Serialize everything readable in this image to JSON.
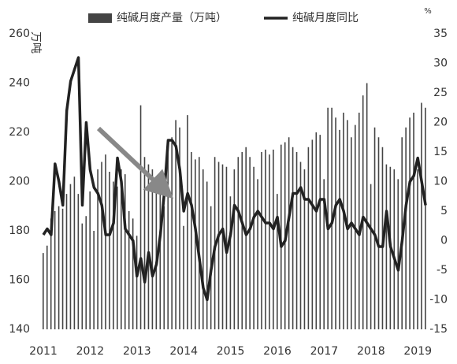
{
  "chart_data": {
    "type": "bar-line",
    "y_label": "万吨",
    "y2_label": "%",
    "categories": [
      "2011",
      null,
      null,
      null,
      null,
      null,
      null,
      null,
      null,
      null,
      null,
      null,
      "2012",
      null,
      null,
      null,
      null,
      null,
      null,
      null,
      null,
      null,
      null,
      null,
      "2013",
      null,
      null,
      null,
      null,
      null,
      null,
      null,
      null,
      null,
      null,
      null,
      "2014",
      null,
      null,
      null,
      null,
      null,
      null,
      null,
      null,
      null,
      null,
      null,
      "2015",
      null,
      null,
      null,
      null,
      null,
      null,
      null,
      null,
      null,
      null,
      null,
      "2016",
      null,
      null,
      null,
      null,
      null,
      null,
      null,
      null,
      null,
      null,
      null,
      "2017",
      null,
      null,
      null,
      null,
      null,
      null,
      null,
      null,
      null,
      null,
      null,
      "2018",
      null,
      null,
      null,
      null,
      null,
      null,
      null,
      null,
      null,
      null,
      null,
      "2019",
      null,
      null
    ],
    "series": [
      {
        "name": "纯碱月度产量（万吨）",
        "color": "#444444",
        "kind": "bar",
        "values": [
          171,
          174,
          185,
          188,
          190,
          189,
          195,
          199,
          202,
          195,
          183,
          186,
          196,
          180,
          205,
          208,
          211,
          204,
          200,
          198,
          205,
          203,
          188,
          185,
          178,
          231,
          210,
          207,
          205,
          200,
          198,
          190,
          215,
          218,
          225,
          222,
          182,
          227,
          212,
          209,
          210,
          205,
          200,
          190,
          210,
          208,
          207,
          206,
          194,
          205,
          210,
          212,
          214,
          210,
          206,
          201,
          212,
          213,
          211,
          213,
          195,
          215,
          216,
          218,
          214,
          212,
          208,
          205,
          214,
          217,
          220,
          219,
          201,
          230,
          230,
          226,
          221,
          228,
          225,
          218,
          223,
          228,
          235,
          240,
          199,
          222,
          218,
          214,
          207,
          206,
          205,
          201,
          218,
          222,
          226,
          228,
          205,
          232,
          230
        ]
      },
      {
        "name": "纯碱月度同比",
        "color": "#222222",
        "kind": "line",
        "axis": "y2",
        "values": [
          1,
          2,
          1,
          13,
          10,
          6,
          22,
          27,
          29,
          31,
          6,
          20,
          12,
          9,
          8,
          6,
          1,
          1,
          3,
          14,
          10,
          2,
          1,
          0,
          -6,
          -3,
          -7,
          -2,
          -6,
          -4,
          1,
          8,
          17,
          17,
          16,
          12,
          5,
          8,
          6,
          2,
          -3,
          -8,
          -10,
          -5,
          -1,
          1,
          2,
          -2,
          1,
          6,
          5,
          3,
          1,
          2,
          4,
          5,
          4,
          3,
          3,
          2,
          4,
          -1,
          0,
          4,
          8,
          8,
          9,
          7,
          7,
          6,
          5,
          7,
          7,
          2,
          3,
          6,
          7,
          5,
          2,
          3,
          2,
          1,
          4,
          3,
          2,
          1,
          -1,
          -1,
          5,
          -1,
          -3,
          -5,
          0,
          6,
          10,
          11,
          14,
          10,
          6
        ]
      }
    ],
    "ylim": [
      140,
      260
    ],
    "yticks": [
      140,
      160,
      180,
      200,
      220,
      240,
      260
    ],
    "y2lim": [
      -15,
      35
    ],
    "y2ticks": [
      -15,
      -10,
      -5,
      0,
      5,
      10,
      15,
      20,
      25,
      30,
      35
    ]
  }
}
